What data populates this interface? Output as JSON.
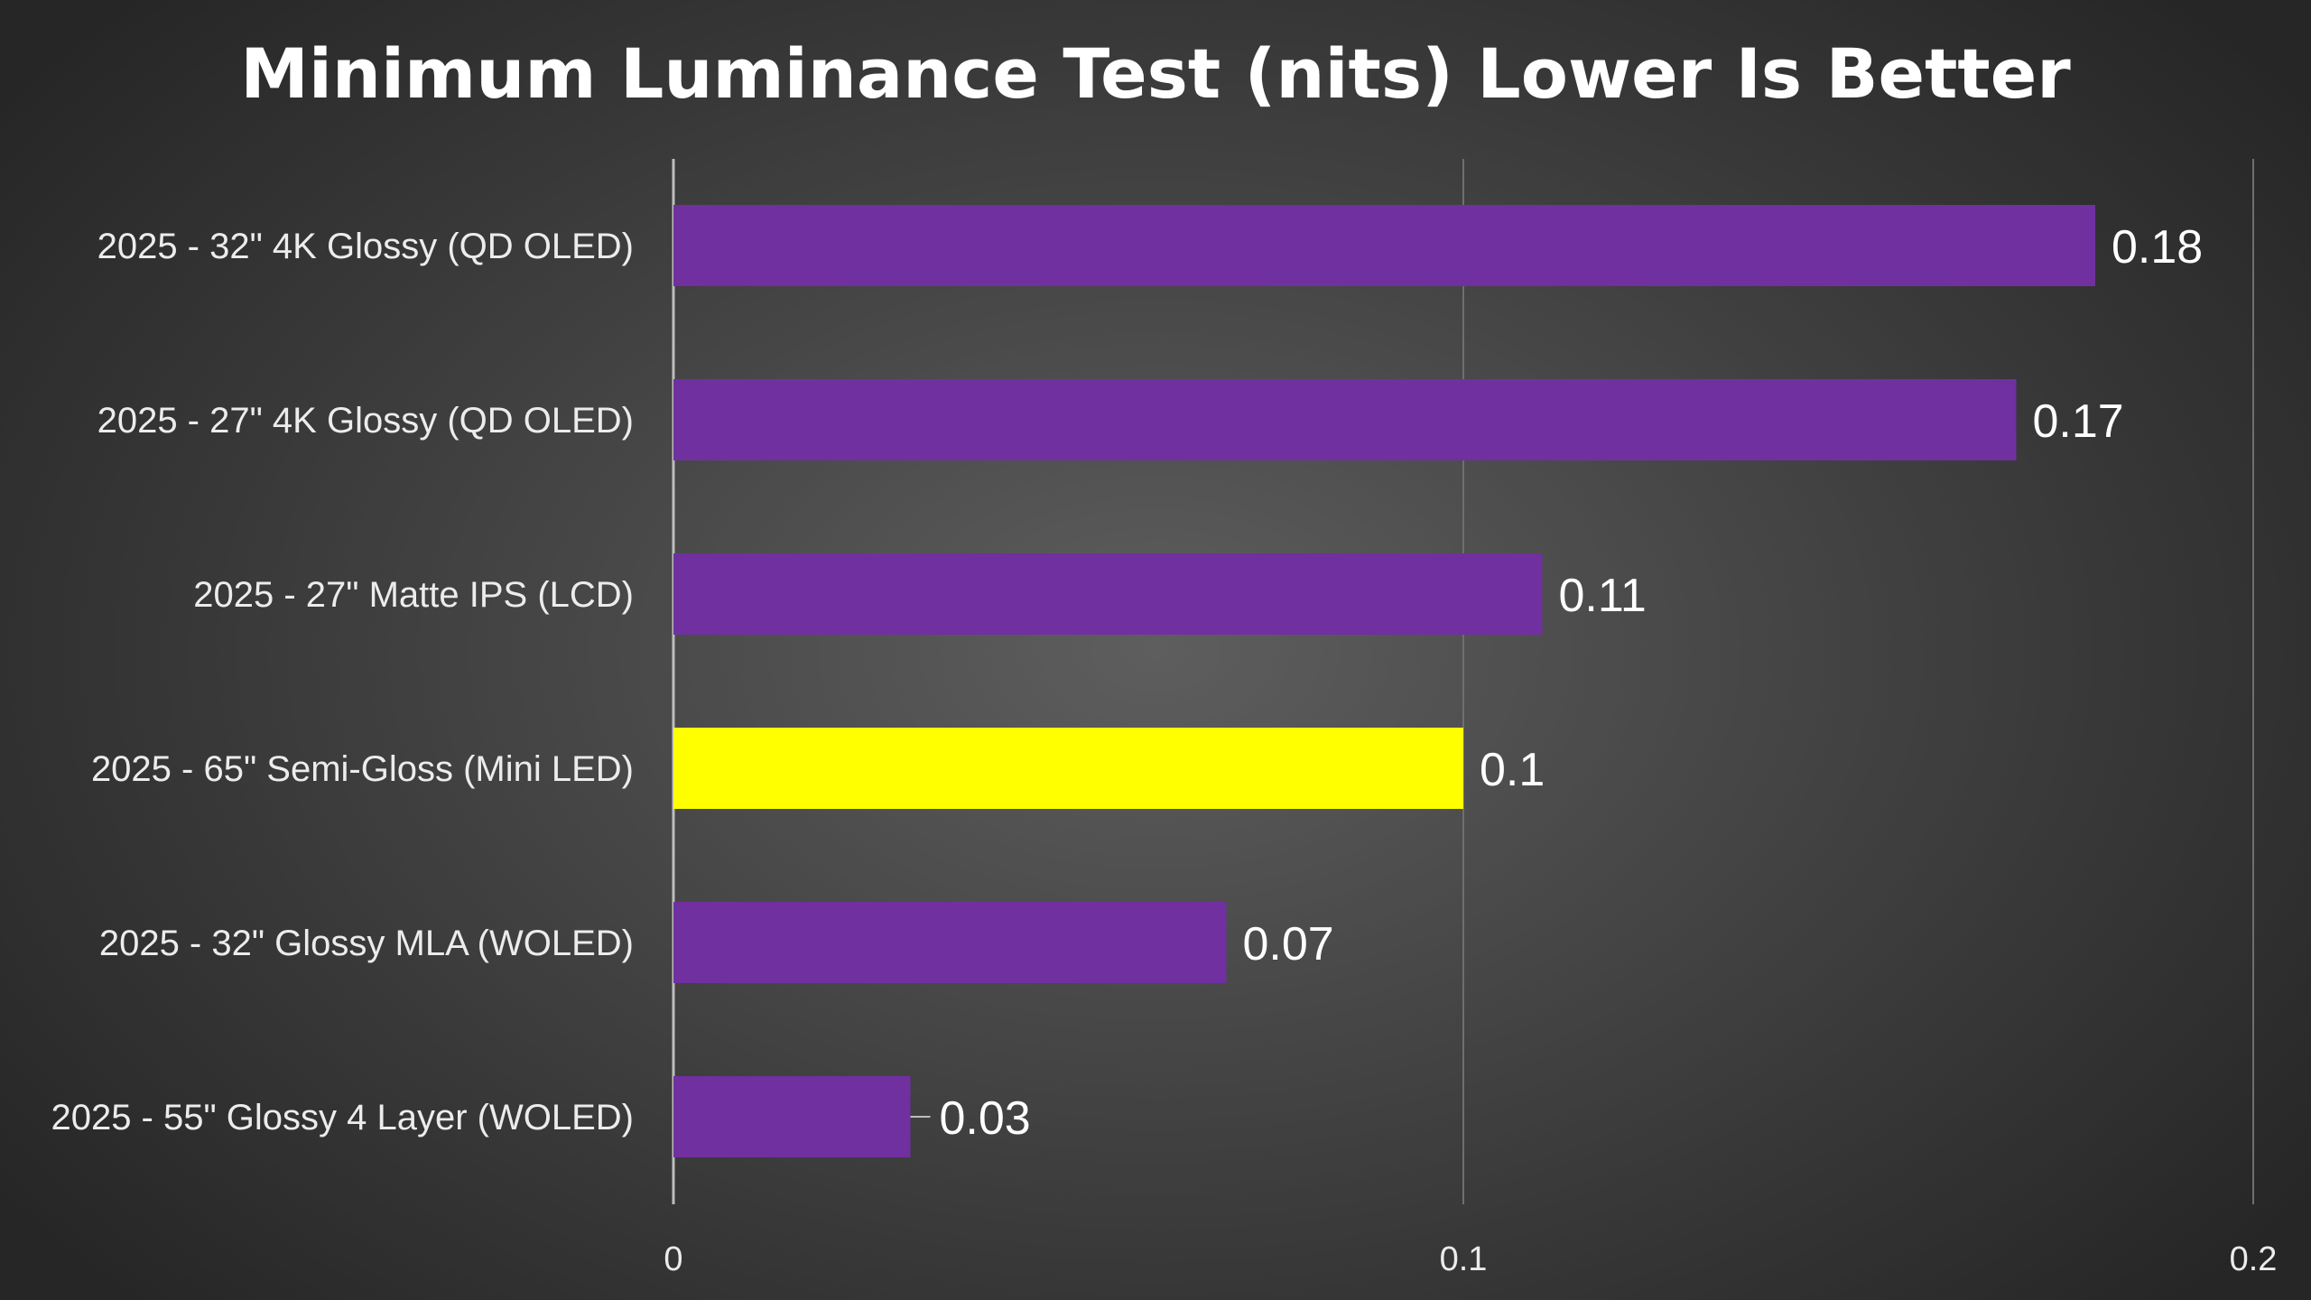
{
  "chart_data": {
    "type": "bar",
    "orientation": "horizontal",
    "title": "Minimum Luminance Test (nits) Lower Is Better",
    "categories": [
      "2025 - 32\" 4K Glossy (QD OLED)",
      "2025 - 27\" 4K Glossy (QD OLED)",
      "2025 - 27\" Matte IPS (LCD)",
      "2025 - 65\" Semi-Gloss (Mini LED)",
      "2025 - 32\" Glossy MLA (WOLED)",
      "2025 - 55\" Glossy 4 Layer (WOLED)"
    ],
    "values": [
      0.18,
      0.17,
      0.11,
      0.1,
      0.07,
      0.03
    ],
    "value_labels": [
      "0.18",
      "0.17",
      "0.11",
      "0.1",
      "0.07",
      "0.03"
    ],
    "bar_colors": [
      "#7030a0",
      "#7030a0",
      "#7030a0",
      "#ffff00",
      "#7030a0",
      "#7030a0"
    ],
    "xlim": [
      0,
      0.2
    ],
    "x_ticks": [
      0,
      0.1,
      0.2
    ],
    "x_tick_labels": [
      "0",
      "0.1",
      "0.2"
    ],
    "grid": true,
    "legend": "none"
  },
  "colors": {
    "bar_default": "#7030a0",
    "bar_highlight": "#ffff00",
    "gridline": "#6f6f6f",
    "axis_line": "#bdbdbd"
  }
}
